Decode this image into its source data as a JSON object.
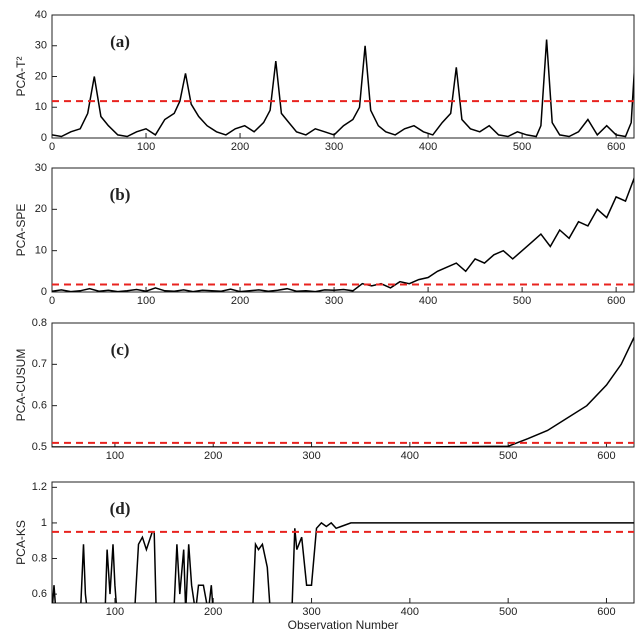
{
  "chart_data": [
    {
      "type": "line",
      "title": "(a)",
      "ylabel": "PCA-T²",
      "color": "#000000",
      "threshold": 12,
      "threshold_color": "#e8231f",
      "xlim": [
        0,
        619
      ],
      "ylim": [
        0,
        40
      ],
      "xticks": [
        0,
        100,
        200,
        300,
        400,
        500,
        600
      ],
      "yticks": [
        0,
        10,
        20,
        30,
        40
      ],
      "x": [
        0,
        10,
        20,
        30,
        38,
        45,
        52,
        60,
        70,
        80,
        90,
        100,
        110,
        120,
        130,
        136,
        142,
        148,
        156,
        165,
        175,
        185,
        195,
        205,
        215,
        225,
        232,
        238,
        244,
        252,
        260,
        270,
        280,
        290,
        300,
        310,
        320,
        327,
        333,
        339,
        347,
        355,
        365,
        375,
        385,
        395,
        405,
        415,
        424,
        430,
        436,
        445,
        455,
        465,
        475,
        485,
        495,
        505,
        515,
        520,
        526,
        532,
        540,
        550,
        560,
        570,
        580,
        590,
        600,
        610,
        616,
        622,
        628
      ],
      "values": [
        1,
        0.5,
        2,
        3,
        8,
        20,
        7,
        4,
        1,
        0.5,
        2,
        3,
        1,
        6,
        8,
        12,
        21,
        11,
        7,
        4,
        2,
        1,
        3,
        4,
        2,
        5,
        9,
        25,
        8,
        5,
        2,
        1,
        3,
        2,
        1,
        4,
        6,
        10,
        30,
        9,
        4,
        2,
        1,
        3,
        4,
        2,
        1,
        5,
        8,
        23,
        6,
        3,
        2,
        4,
        1,
        0.5,
        2,
        1,
        0.5,
        4,
        32,
        5,
        1,
        0.5,
        2,
        6,
        1,
        4,
        1,
        0.5,
        5,
        35,
        4
      ]
    },
    {
      "type": "line",
      "title": "(b)",
      "ylabel": "PCA-SPE",
      "color": "#000000",
      "threshold": 1.8,
      "threshold_color": "#e8231f",
      "xlim": [
        0,
        619
      ],
      "ylim": [
        0,
        30
      ],
      "xticks": [
        0,
        100,
        200,
        300,
        400,
        500,
        600
      ],
      "yticks": [
        0,
        10,
        20,
        30
      ],
      "x": [
        0,
        10,
        20,
        30,
        40,
        50,
        60,
        70,
        80,
        90,
        100,
        110,
        120,
        130,
        140,
        150,
        160,
        170,
        180,
        190,
        200,
        210,
        220,
        230,
        240,
        250,
        260,
        270,
        280,
        290,
        300,
        310,
        320,
        330,
        340,
        350,
        360,
        370,
        380,
        390,
        400,
        410,
        420,
        430,
        440,
        450,
        460,
        470,
        480,
        490,
        500,
        510,
        520,
        530,
        540,
        550,
        560,
        570,
        580,
        590,
        600,
        610,
        620,
        630
      ],
      "values": [
        0.2,
        0.5,
        0.1,
        0.3,
        0.8,
        0.2,
        0.4,
        0.1,
        0.3,
        0.6,
        0.2,
        1.0,
        0.3,
        0.2,
        0.5,
        0.1,
        0.4,
        0.3,
        0.2,
        0.7,
        0.1,
        0.3,
        0.5,
        0.2,
        0.4,
        0.8,
        0.2,
        0.3,
        0.1,
        0.5,
        0.4,
        0.6,
        0.3,
        2,
        1.5,
        2,
        1,
        2.5,
        2,
        3,
        3.5,
        5,
        6,
        7,
        5,
        8,
        7,
        9,
        10,
        8,
        10,
        12,
        14,
        11,
        15,
        13,
        17,
        16,
        20,
        18,
        23,
        22,
        28,
        25
      ]
    },
    {
      "type": "line",
      "title": "(c)",
      "ylabel": "PCA-CUSUM",
      "color": "#000000",
      "threshold": 0.51,
      "threshold_color": "#e8231f",
      "xlim": [
        36,
        628
      ],
      "ylim": [
        0.5,
        0.8
      ],
      "xticks": [
        100,
        200,
        300,
        400,
        500,
        600
      ],
      "yticks": [
        0.5,
        0.6,
        0.7,
        0.8
      ],
      "x": [
        36,
        100,
        200,
        300,
        400,
        500,
        520,
        540,
        560,
        580,
        600,
        615,
        628
      ],
      "values": [
        0.5,
        0.5,
        0.5,
        0.5,
        0.5,
        0.502,
        0.52,
        0.54,
        0.57,
        0.6,
        0.65,
        0.7,
        0.765
      ]
    },
    {
      "type": "line",
      "title": "(d)",
      "ylabel": "PCA-KS",
      "xlabel": "Observation Number",
      "color": "#000000",
      "threshold": 0.95,
      "threshold_color": "#e8231f",
      "xlim": [
        36,
        628
      ],
      "ylim": [
        0.55,
        1.23
      ],
      "xticks": [
        100,
        200,
        300,
        400,
        500,
        600
      ],
      "yticks": [
        0.6,
        0.8,
        1,
        1.2
      ],
      "x": [
        36,
        38,
        40,
        65,
        68,
        70,
        72,
        75,
        90,
        92,
        95,
        98,
        100,
        102,
        104,
        120,
        124,
        128,
        132,
        138,
        140,
        142,
        160,
        163,
        166,
        170,
        172,
        175,
        178,
        182,
        185,
        190,
        195,
        198,
        200,
        205,
        240,
        243,
        246,
        250,
        255,
        258,
        262,
        280,
        283,
        285,
        290,
        295,
        300,
        305,
        310,
        315,
        320,
        325,
        330,
        340,
        628
      ],
      "values": [
        0.5,
        0.65,
        0.5,
        0.5,
        0.88,
        0.6,
        0.5,
        0.5,
        0.5,
        0.85,
        0.6,
        0.88,
        0.65,
        0.5,
        0.5,
        0.5,
        0.88,
        0.92,
        0.85,
        0.95,
        0.95,
        0.5,
        0.5,
        0.88,
        0.6,
        0.85,
        0.5,
        0.88,
        0.65,
        0.5,
        0.65,
        0.65,
        0.5,
        0.65,
        0.5,
        0.5,
        0.5,
        0.88,
        0.85,
        0.88,
        0.75,
        0.5,
        0.5,
        0.5,
        0.97,
        0.85,
        0.92,
        0.65,
        0.65,
        0.97,
        1.0,
        0.98,
        1.0,
        0.97,
        0.98,
        1.0,
        1.0
      ]
    }
  ]
}
